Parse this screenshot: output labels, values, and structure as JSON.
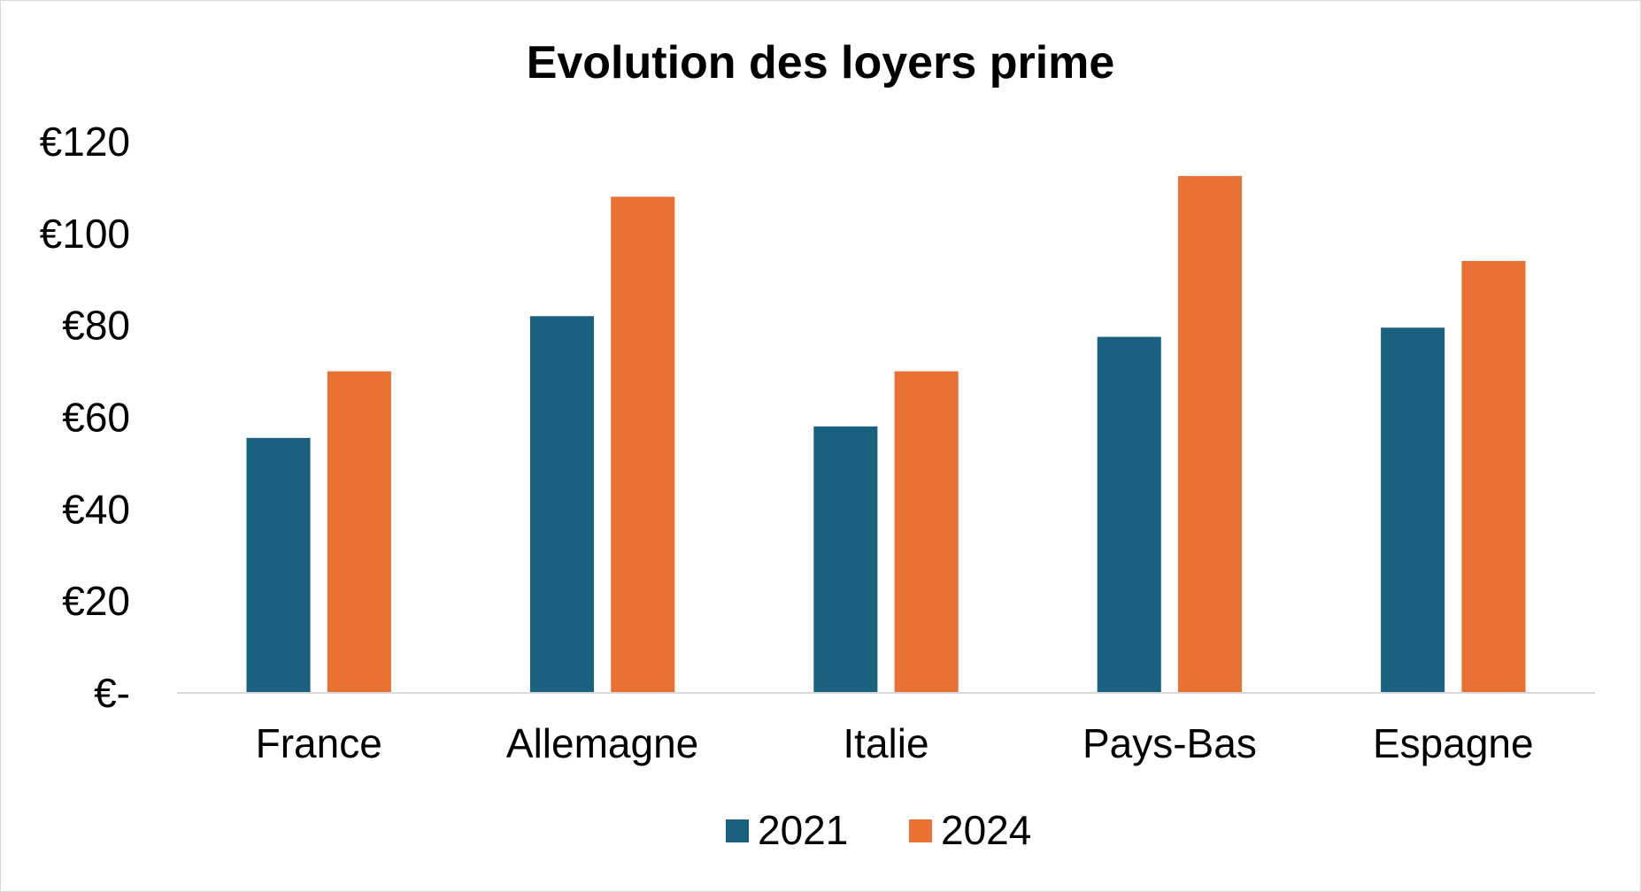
{
  "chart_data": {
    "type": "bar",
    "title": "Evolution des loyers prime",
    "xlabel": "",
    "ylabel": "",
    "categories": [
      "France",
      "Allemagne",
      "Italie",
      "Pays-Bas",
      "Espagne"
    ],
    "series": [
      {
        "name": "2021",
        "color": "#1a6180",
        "values": [
          55.5,
          82,
          58,
          77.5,
          79.5
        ]
      },
      {
        "name": "2024",
        "color": "#e97132",
        "values": [
          70,
          108,
          70,
          112.5,
          94
        ]
      }
    ],
    "ylim": [
      0,
      120
    ],
    "y_ticks": [
      0,
      20,
      40,
      60,
      80,
      100,
      120
    ],
    "y_tick_labels": [
      "€-",
      "€20",
      "€40",
      "€60",
      "€80",
      "€100",
      "€120"
    ],
    "grid": false,
    "legend_position": "bottom",
    "axis_color": "#d9d9d9"
  }
}
